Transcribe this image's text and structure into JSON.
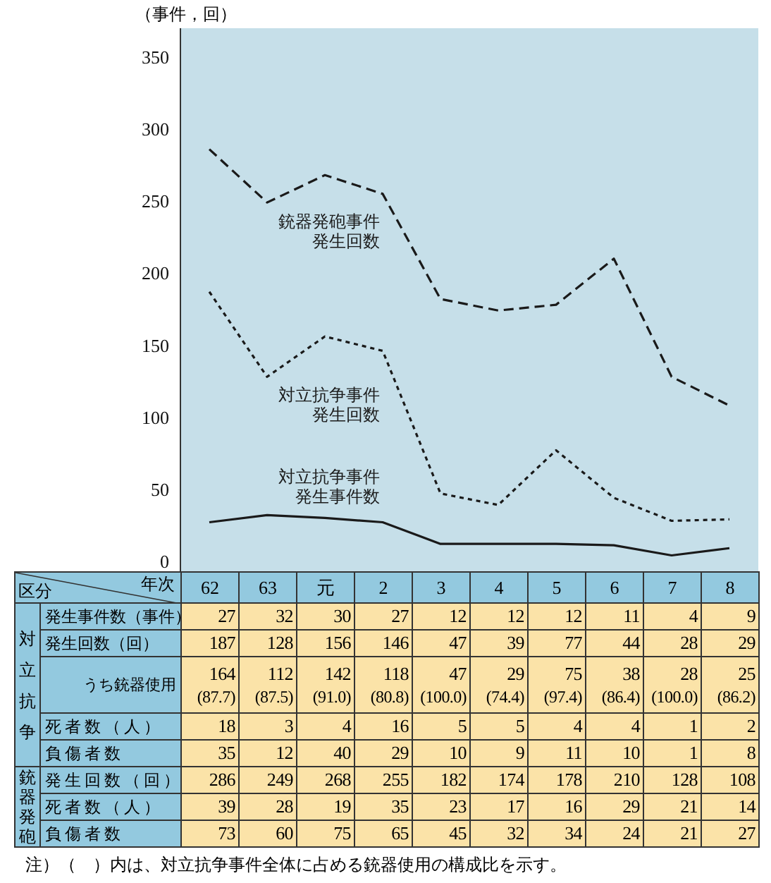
{
  "chart_data": {
    "type": "line",
    "ylabel": "（事件，回）",
    "categories": [
      "62",
      "63",
      "元",
      "2",
      "3",
      "4",
      "5",
      "6",
      "7",
      "8"
    ],
    "ylim": [
      -8,
      370
    ],
    "yticks": [
      0,
      50,
      100,
      150,
      200,
      250,
      300,
      350
    ],
    "tick_labels": "y",
    "marker": "none",
    "data_labels": true,
    "series": [
      {
        "name": "対立抗争事件発生事件数",
        "color": "#1a1a1a",
        "line_style": "solid",
        "values": [
          27,
          32,
          30,
          27,
          12,
          12,
          12,
          11,
          4,
          9
        ]
      },
      {
        "name": "対立抗争事件発生回数",
        "color": "#1a1a1a",
        "line_style": "dotted",
        "values": [
          187,
          128,
          156,
          146,
          47,
          39,
          77,
          44,
          28,
          29
        ]
      },
      {
        "name": "銃器発砲事件発生回数",
        "color": "#1a1a1a",
        "line_style": "dashed",
        "values": [
          286,
          249,
          268,
          255,
          182,
          174,
          178,
          210,
          128,
          108
        ]
      }
    ],
    "annotations": [
      "区分",
      "年次",
      "対立抗争",
      "銃器発砲",
      "発生事件数（事件）",
      "発生回数（回）",
      "うち銃器使用",
      "164 112 142 118 47 29 75 38 28 25",
      "(87.7) (87.5) (91.0) (80.8) (100.0) (74.4) (97.4) (86.4) (100.0) (86.2)",
      "死者数（人）",
      "18 3 4 16 5 5 4 4 1 2",
      "負傷者数",
      "35 12 40 29 10 9 11 10 1 8",
      "発生回数（回）",
      "死者数（人）",
      "39 28 19 35 23 17 16 29 21 14",
      "負傷者数",
      "73 60 75 65 45 32 34 24 21 27",
      "注）（　）内は、対立抗争事件全体に占める銃器使用の構成比を示す。"
    ]
  }
}
